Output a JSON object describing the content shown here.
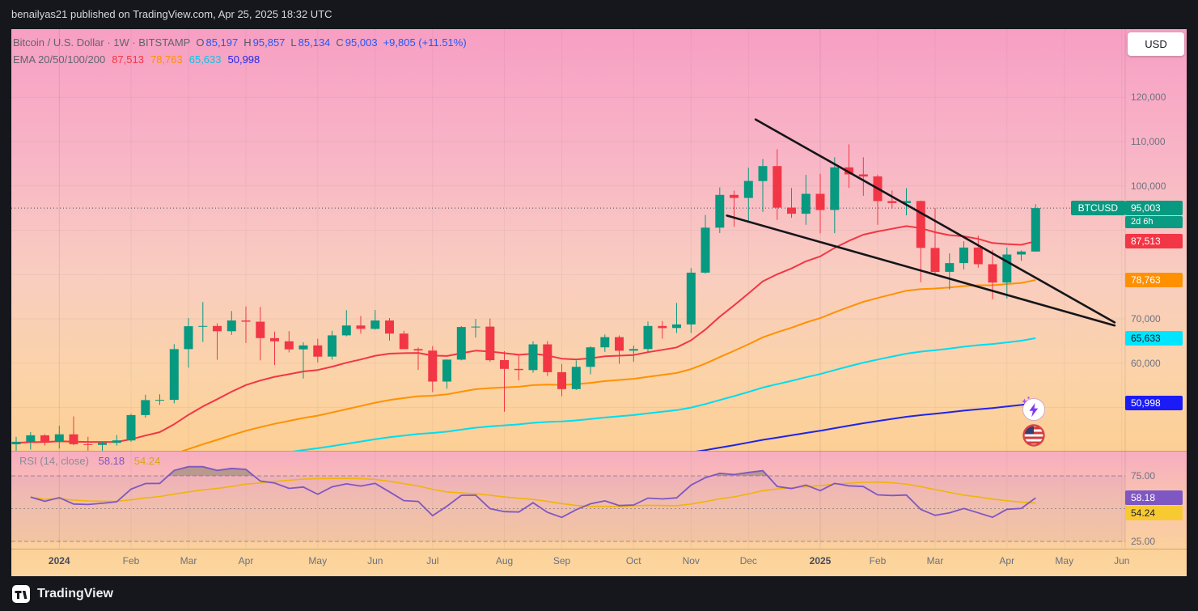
{
  "header": {
    "byline": "benailyas21 published on TradingView.com, Apr 25, 2025 18:32 UTC"
  },
  "controls": {
    "currency_button": "USD"
  },
  "legend": {
    "title": "Bitcoin / U.S. Dollar · 1W · BITSTAMP",
    "ohlc": [
      {
        "label": "O",
        "value": "85,197"
      },
      {
        "label": "H",
        "value": "95,857"
      },
      {
        "label": "L",
        "value": "85,134"
      },
      {
        "label": "C",
        "value": "95,003"
      }
    ],
    "change": "+9,805 (+11.51%)",
    "ema_title": "EMA 20/50/100/200",
    "ema_values": [
      {
        "text": "87,513",
        "color": "#f23645"
      },
      {
        "text": "78,763",
        "color": "#ff9100"
      },
      {
        "text": "65,633",
        "color": "#00c8e8"
      },
      {
        "text": "50,998",
        "color": "#2228f0"
      }
    ]
  },
  "price_scale": {
    "labels": [
      {
        "text": "120,000",
        "value": 120000
      },
      {
        "text": "110,000",
        "value": 110000
      },
      {
        "text": "100,000",
        "value": 100000
      },
      {
        "text": "70,000",
        "value": 70000
      },
      {
        "text": "60,000",
        "value": 60000
      }
    ],
    "symbol_badge": {
      "text": "BTCUSD",
      "bg": "#089981",
      "fg": "#ffffff"
    },
    "price_badge": {
      "text": "95,003",
      "value": 95003,
      "bg": "#089981",
      "fg": "#ffffff"
    },
    "countdown_badge": {
      "text": "2d 6h",
      "bg": "#0a9b82",
      "fg": "#ffffff"
    },
    "ema_badges": [
      {
        "text": "87,513",
        "value": 87513,
        "bg": "#f23645",
        "fg": "#ffffff"
      },
      {
        "text": "78,763",
        "value": 78763,
        "bg": "#ff9100",
        "fg": "#ffffff"
      },
      {
        "text": "65,633",
        "value": 65633,
        "bg": "#00e5ff",
        "fg": "#10131a"
      },
      {
        "text": "50,998",
        "value": 50998,
        "bg": "#1b1bf7",
        "fg": "#ffffff"
      }
    ]
  },
  "time_scale": {
    "labels": [
      {
        "text": "2024",
        "i": 3,
        "major": true
      },
      {
        "text": "Feb",
        "i": 8
      },
      {
        "text": "Mar",
        "i": 12
      },
      {
        "text": "Apr",
        "i": 16
      },
      {
        "text": "May",
        "i": 21
      },
      {
        "text": "Jun",
        "i": 25
      },
      {
        "text": "Jul",
        "i": 29
      },
      {
        "text": "Aug",
        "i": 34
      },
      {
        "text": "Sep",
        "i": 38
      },
      {
        "text": "Oct",
        "i": 43
      },
      {
        "text": "Nov",
        "i": 47
      },
      {
        "text": "Dec",
        "i": 51
      },
      {
        "text": "2025",
        "i": 56,
        "major": true
      },
      {
        "text": "Feb",
        "i": 60
      },
      {
        "text": "Mar",
        "i": 64
      },
      {
        "text": "Apr",
        "i": 69
      },
      {
        "text": "May",
        "i": 73
      },
      {
        "text": "Jun",
        "i": 77
      }
    ]
  },
  "rsi_pane": {
    "title": "RSI (14, close)",
    "value": "58.18",
    "ma_value": "54.24",
    "value_color": "#7e57c2",
    "ma_color": "#d9a514",
    "scale_labels": [
      {
        "text": "75.00",
        "value": 75
      },
      {
        "text": "25.00",
        "value": 25
      }
    ],
    "badges": [
      {
        "text": "58.18",
        "value": 58.18,
        "bg": "#7e57c2",
        "fg": "#ffffff"
      },
      {
        "text": "54.24",
        "value": 54.24,
        "bg": "#f7ca32",
        "fg": "#20222a"
      }
    ]
  },
  "overlay_icons": [
    {
      "name": "lightning-reaction-icon"
    },
    {
      "name": "us-flag-reaction-icon"
    }
  ],
  "footer": {
    "brand": "TradingView"
  },
  "chart_data": {
    "type": "candlestick",
    "title": "Bitcoin / U.S. Dollar",
    "symbol": "BTCUSD",
    "exchange": "BITSTAMP",
    "interval": "1W",
    "current_ohlc": {
      "open": 85197,
      "high": 95857,
      "low": 85134,
      "close": 95003,
      "change": 9805,
      "change_pct": 11.51
    },
    "colors": {
      "up": "#089981",
      "down": "#f23645"
    },
    "price_gridlines": [
      120000,
      110000,
      100000,
      90000,
      80000,
      70000,
      60000,
      50000
    ],
    "close_line_price": 95003,
    "candles": [
      [
        41700,
        43400,
        40150,
        42270
      ],
      [
        42270,
        44430,
        40530,
        43720
      ],
      [
        43720,
        43960,
        41430,
        42280
      ],
      [
        42280,
        45880,
        40750,
        43940
      ],
      [
        43940,
        47980,
        41500,
        41720
      ],
      [
        41720,
        43400,
        40280,
        41560
      ],
      [
        41560,
        42250,
        38555,
        42030
      ],
      [
        42030,
        43790,
        41400,
        42580
      ],
      [
        42580,
        48590,
        42270,
        48290
      ],
      [
        48290,
        52880,
        47720,
        51660
      ],
      [
        51660,
        52990,
        50600,
        51730
      ],
      [
        51730,
        64280,
        50930,
        63170
      ],
      [
        63170,
        70180,
        59005,
        68330
      ],
      [
        68330,
        73790,
        64780,
        68390
      ],
      [
        68390,
        68990,
        60780,
        67210
      ],
      [
        67210,
        71770,
        66380,
        69640
      ],
      [
        69640,
        72800,
        64560,
        69360
      ],
      [
        69360,
        72700,
        60660,
        65650
      ],
      [
        65650,
        67110,
        59600,
        64940
      ],
      [
        64940,
        67230,
        62420,
        63110
      ],
      [
        63110,
        64730,
        56550,
        64010
      ],
      [
        64010,
        65500,
        60170,
        61480
      ],
      [
        61480,
        67320,
        60800,
        66270
      ],
      [
        66270,
        71950,
        66060,
        68500
      ],
      [
        68500,
        70650,
        66670,
        67750
      ],
      [
        67750,
        71990,
        67580,
        69640
      ],
      [
        69640,
        70190,
        65080,
        66680
      ],
      [
        66680,
        67290,
        63380,
        63180
      ],
      [
        63180,
        63580,
        58480,
        62850
      ],
      [
        62850,
        63860,
        53500,
        55850
      ],
      [
        55850,
        60850,
        54260,
        60800
      ],
      [
        60800,
        68370,
        60630,
        68150
      ],
      [
        68150,
        69980,
        65780,
        68250
      ],
      [
        68250,
        70070,
        60300,
        60680
      ],
      [
        60680,
        62700,
        49050,
        58710
      ],
      [
        58710,
        61850,
        56130,
        58440
      ],
      [
        58440,
        64950,
        57850,
        64250
      ],
      [
        64250,
        65000,
        57130,
        57970
      ],
      [
        57970,
        59810,
        52550,
        54160
      ],
      [
        54160,
        60620,
        53950,
        59180
      ],
      [
        59180,
        63850,
        57490,
        63580
      ],
      [
        63580,
        66480,
        62550,
        65880
      ],
      [
        65880,
        66250,
        59860,
        62820
      ],
      [
        62820,
        63990,
        60330,
        63190
      ],
      [
        63190,
        69400,
        62450,
        68400
      ],
      [
        68400,
        69500,
        65520,
        67930
      ],
      [
        67930,
        73620,
        66800,
        68740
      ],
      [
        68740,
        81450,
        66830,
        80430
      ],
      [
        80430,
        93450,
        80220,
        90580
      ],
      [
        90580,
        99650,
        89380,
        97970
      ],
      [
        97970,
        98950,
        90790,
        97280
      ],
      [
        97280,
        104090,
        92090,
        101110
      ],
      [
        101110,
        106090,
        94150,
        104480
      ],
      [
        104480,
        108270,
        92330,
        95100
      ],
      [
        95100,
        99500,
        92800,
        93720
      ],
      [
        93720,
        102480,
        91220,
        98220
      ],
      [
        98220,
        102720,
        89260,
        94570
      ],
      [
        94570,
        106470,
        89340,
        104180
      ],
      [
        104180,
        109360,
        99550,
        102600
      ],
      [
        102600,
        106460,
        97780,
        102130
      ],
      [
        102130,
        102540,
        91230,
        96560
      ],
      [
        96560,
        98960,
        94880,
        96120
      ],
      [
        96120,
        99480,
        93380,
        96580
      ],
      [
        96580,
        96680,
        78260,
        86000
      ],
      [
        86000,
        95000,
        80110,
        80600
      ],
      [
        80600,
        84770,
        76620,
        82580
      ],
      [
        82580,
        87470,
        81140,
        86090
      ],
      [
        86090,
        88770,
        81560,
        82330
      ],
      [
        82330,
        85560,
        74430,
        78210
      ],
      [
        78210,
        86100,
        74590,
        84520
      ],
      [
        84520,
        85430,
        83110,
        85197
      ],
      [
        85197,
        95857,
        85134,
        95003
      ]
    ],
    "emas": [
      {
        "period": 20,
        "color": "#f23645",
        "last": 87513
      },
      {
        "period": 50,
        "color": "#ff9100",
        "last": 78763
      },
      {
        "period": 100,
        "color": "#00dcf0",
        "last": 65633
      },
      {
        "period": 200,
        "color": "#2024e8",
        "last": 50998
      }
    ],
    "trendlines": [
      {
        "from_i": 51.5,
        "from_price": 115000,
        "to_i": 76.5,
        "to_price": 69200
      },
      {
        "from_i": 49.5,
        "from_price": 93300,
        "to_i": 76.5,
        "to_price": 68500
      }
    ],
    "rsi": {
      "period": 14,
      "source": "close",
      "last": 58.18,
      "ma_last": 54.24,
      "levels": [
        75,
        50,
        25
      ],
      "color": "#7e57c2",
      "ma_color": "#f0b40a"
    }
  }
}
